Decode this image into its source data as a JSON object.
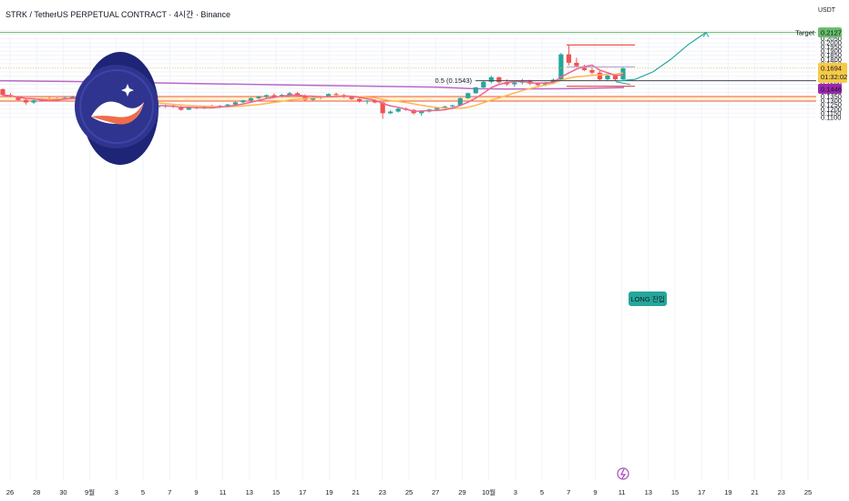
{
  "header": {
    "title": "STRK / TetherUS PERPETUAL CONTRACT · 4시간 · Binance",
    "unit": "USDT"
  },
  "colors": {
    "bull": "#26a69a",
    "bear": "#ef5350",
    "ma_fast": "#f06292",
    "ma_slow": "#ffb74d",
    "ma_long": "#ba68c8",
    "target": "#66bb6a",
    "zone": "#fff3c4",
    "grid": "#f0f3fa"
  },
  "chart_data": {
    "type": "candlestick",
    "y_ticks": [
      "0.2150",
      "0.2100",
      "0.2050",
      "0.2000",
      "0.1950",
      "0.1900",
      "0.1850",
      "0.1800",
      "0.1750",
      "0.1700",
      "0.1650",
      "0.1600",
      "0.1550",
      "0.1500",
      "0.1450",
      "0.1400",
      "0.1350",
      "0.1300",
      "0.1250",
      "0.1200",
      "0.1150",
      "0.1100"
    ],
    "y_range": [
      0.107,
      0.22
    ],
    "x_ticks": [
      "26",
      "28",
      "30",
      "9월",
      "3",
      "5",
      "7",
      "9",
      "11",
      "13",
      "15",
      "17",
      "19",
      "21",
      "23",
      "25",
      "27",
      "29",
      "10월",
      "3",
      "5",
      "7",
      "9",
      "11",
      "13",
      "15",
      "17",
      "19",
      "21",
      "23",
      "25"
    ],
    "current_price": {
      "label": "0.1694",
      "value": 0.1694,
      "countdown": "01:32:02"
    },
    "target": {
      "label": "Target",
      "value": 0.2127,
      "value_label": "0.2127"
    },
    "fib_level": {
      "label": "0.5 (0.1543)",
      "value": 0.1543
    },
    "ma_long_last": {
      "label": "0.1446",
      "value": 0.1446
    },
    "annotation": "LONG 진입",
    "zone": {
      "top": 0.1351,
      "bottom": 0.1297
    },
    "projection": [
      [
        0.154,
        0
      ],
      [
        0.156,
        0.2
      ],
      [
        0.165,
        0.4
      ],
      [
        0.18,
        0.6
      ],
      [
        0.198,
        0.8
      ],
      [
        0.2127,
        1
      ]
    ],
    "lines": {
      "high": 0.1975,
      "mid": 0.1711,
      "low": 0.1477
    },
    "ohlc": [
      [
        0.144,
        0.1452,
        0.1362,
        0.137
      ],
      [
        0.137,
        0.1395,
        0.1341,
        0.1352
      ],
      [
        0.1352,
        0.136,
        0.13,
        0.131
      ],
      [
        0.131,
        0.133,
        0.1255,
        0.128
      ],
      [
        0.128,
        0.132,
        0.1262,
        0.1305
      ],
      [
        0.1305,
        0.1335,
        0.129,
        0.132
      ],
      [
        0.132,
        0.135,
        0.1298,
        0.1312
      ],
      [
        0.1312,
        0.134,
        0.13,
        0.133
      ],
      [
        0.133,
        0.1355,
        0.131,
        0.1338
      ],
      [
        0.1338,
        0.136,
        0.1322,
        0.1345
      ],
      [
        0.1345,
        0.135,
        0.1305,
        0.1315
      ],
      [
        0.1315,
        0.133,
        0.128,
        0.129
      ],
      [
        0.129,
        0.131,
        0.1262,
        0.13
      ],
      [
        0.13,
        0.1318,
        0.127,
        0.1285
      ],
      [
        0.1285,
        0.13,
        0.1248,
        0.126
      ],
      [
        0.126,
        0.1292,
        0.125,
        0.1282
      ],
      [
        0.1282,
        0.1295,
        0.125,
        0.1262
      ],
      [
        0.1262,
        0.128,
        0.123,
        0.1242
      ],
      [
        0.1242,
        0.1268,
        0.1225,
        0.1255
      ],
      [
        0.1255,
        0.127,
        0.121,
        0.1222
      ],
      [
        0.1222,
        0.1245,
        0.12,
        0.1232
      ],
      [
        0.1232,
        0.1255,
        0.1212,
        0.1242
      ],
      [
        0.1242,
        0.126,
        0.1215,
        0.1225
      ],
      [
        0.1225,
        0.124,
        0.118,
        0.1192
      ],
      [
        0.1192,
        0.1228,
        0.1188,
        0.122
      ],
      [
        0.122,
        0.124,
        0.1198,
        0.1212
      ],
      [
        0.1212,
        0.1238,
        0.12,
        0.123
      ],
      [
        0.123,
        0.1252,
        0.1215,
        0.1225
      ],
      [
        0.1225,
        0.1248,
        0.1212,
        0.124
      ],
      [
        0.124,
        0.1262,
        0.1228,
        0.1255
      ],
      [
        0.1255,
        0.129,
        0.1248,
        0.1282
      ],
      [
        0.1282,
        0.1312,
        0.127,
        0.1305
      ],
      [
        0.1305,
        0.134,
        0.1295,
        0.1332
      ],
      [
        0.1332,
        0.136,
        0.1318,
        0.135
      ],
      [
        0.135,
        0.1378,
        0.1335,
        0.1368
      ],
      [
        0.1368,
        0.139,
        0.1345,
        0.1355
      ],
      [
        0.1355,
        0.1382,
        0.134,
        0.1372
      ],
      [
        0.1372,
        0.1408,
        0.136,
        0.1392
      ],
      [
        0.1392,
        0.1405,
        0.135,
        0.1362
      ],
      [
        0.1362,
        0.138,
        0.13,
        0.1312
      ],
      [
        0.1312,
        0.1345,
        0.1305,
        0.1338
      ],
      [
        0.1338,
        0.136,
        0.132,
        0.135
      ],
      [
        0.135,
        0.139,
        0.134,
        0.1382
      ],
      [
        0.1382,
        0.14,
        0.1362,
        0.137
      ],
      [
        0.137,
        0.1385,
        0.1335,
        0.1345
      ],
      [
        0.1345,
        0.136,
        0.131,
        0.1322
      ],
      [
        0.1322,
        0.133,
        0.128,
        0.129
      ],
      [
        0.129,
        0.131,
        0.126,
        0.1302
      ],
      [
        0.1302,
        0.1315,
        0.127,
        0.128
      ],
      [
        0.128,
        0.129,
        0.1082,
        0.115
      ],
      [
        0.115,
        0.1185,
        0.1138,
        0.117
      ],
      [
        0.117,
        0.1215,
        0.116,
        0.1205
      ],
      [
        0.1205,
        0.1222,
        0.118,
        0.119
      ],
      [
        0.119,
        0.12,
        0.1135,
        0.115
      ],
      [
        0.115,
        0.1182,
        0.112,
        0.117
      ],
      [
        0.117,
        0.1205,
        0.116,
        0.1195
      ],
      [
        0.1195,
        0.1225,
        0.1185,
        0.1215
      ],
      [
        0.1215,
        0.124,
        0.12,
        0.1232
      ],
      [
        0.1232,
        0.125,
        0.121,
        0.1245
      ],
      [
        0.1245,
        0.134,
        0.124,
        0.1332
      ],
      [
        0.1332,
        0.14,
        0.1325,
        0.1392
      ],
      [
        0.1392,
        0.147,
        0.1385,
        0.1462
      ],
      [
        0.1462,
        0.154,
        0.1452,
        0.153
      ],
      [
        0.153,
        0.1605,
        0.1512,
        0.1585
      ],
      [
        0.1585,
        0.1592,
        0.151,
        0.1525
      ],
      [
        0.1525,
        0.156,
        0.148,
        0.15
      ],
      [
        0.15,
        0.154,
        0.147,
        0.152
      ],
      [
        0.152,
        0.1565,
        0.15,
        0.1545
      ],
      [
        0.1545,
        0.1555,
        0.149,
        0.1508
      ],
      [
        0.1508,
        0.1525,
        0.147,
        0.149
      ],
      [
        0.149,
        0.153,
        0.1478,
        0.152
      ],
      [
        0.152,
        0.157,
        0.151,
        0.1555
      ],
      [
        0.1555,
        0.188,
        0.155,
        0.1862
      ],
      [
        0.1862,
        0.1975,
        0.173,
        0.176
      ],
      [
        0.176,
        0.182,
        0.17,
        0.172
      ],
      [
        0.172,
        0.1735,
        0.166,
        0.1672
      ],
      [
        0.1672,
        0.17,
        0.162,
        0.164
      ],
      [
        0.164,
        0.166,
        0.1545,
        0.156
      ],
      [
        0.156,
        0.162,
        0.154,
        0.1605
      ],
      [
        0.1605,
        0.162,
        0.1545,
        0.156
      ],
      [
        0.156,
        0.1711,
        0.1555,
        0.1694
      ]
    ]
  }
}
